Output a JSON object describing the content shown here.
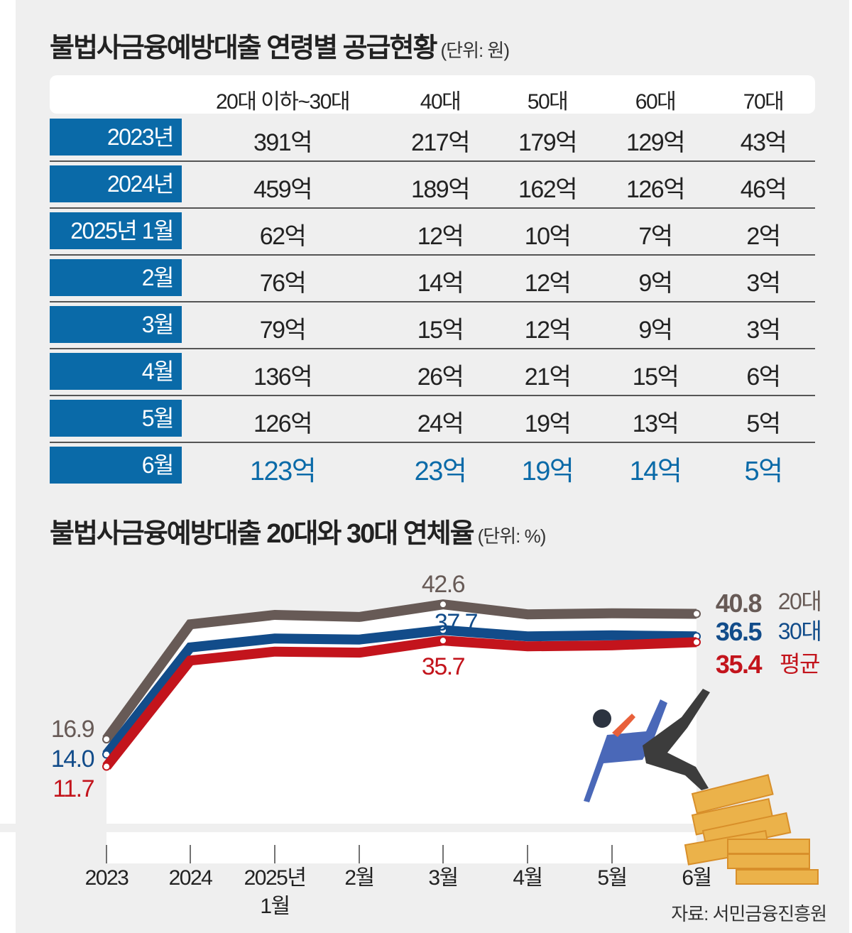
{
  "table": {
    "title": "불법사금융예방대출 연령별 공급현황",
    "unit": "(단위: 원)",
    "columns": [
      "20대 이하~30대",
      "40대",
      "50대",
      "60대",
      "70대"
    ],
    "rows": [
      {
        "label": "2023년",
        "values": [
          "391억",
          "217억",
          "179억",
          "129억",
          "43억"
        ]
      },
      {
        "label": "2024년",
        "values": [
          "459억",
          "189억",
          "162억",
          "126억",
          "46억"
        ]
      },
      {
        "label": "2025년 1월",
        "values": [
          "62억",
          "12억",
          "10억",
          "7억",
          "2억"
        ]
      },
      {
        "label": "2월",
        "values": [
          "76억",
          "14억",
          "12억",
          "9억",
          "3억"
        ]
      },
      {
        "label": "3월",
        "values": [
          "79억",
          "15억",
          "12억",
          "9억",
          "3억"
        ]
      },
      {
        "label": "4월",
        "values": [
          "136억",
          "26억",
          "21억",
          "15억",
          "6억"
        ]
      },
      {
        "label": "5월",
        "values": [
          "126억",
          "24억",
          "19억",
          "13억",
          "5억"
        ]
      },
      {
        "label": "6월",
        "values": [
          "123억",
          "23억",
          "19억",
          "14억",
          "5억"
        ]
      }
    ]
  },
  "chart_data": {
    "type": "line",
    "title": "불법사금융예방대출 20대와 30대 연체율",
    "unit": "(단위: %)",
    "categories": [
      "2023",
      "2024",
      "2025년\n1월",
      "2월",
      "3월",
      "4월",
      "5월",
      "6월"
    ],
    "series": [
      {
        "name": "20대",
        "color": "#675a56",
        "values": [
          16.9,
          38.8,
          40.6,
          40.2,
          42.6,
          40.7,
          40.9,
          40.8
        ],
        "labels": {
          "0": "16.9",
          "4": "42.6",
          "7": "40.8"
        }
      },
      {
        "name": "30대",
        "color": "#124c8a",
        "values": [
          14.0,
          34.4,
          36.1,
          35.9,
          37.7,
          36.5,
          36.7,
          36.5
        ],
        "labels": {
          "0": "14.0",
          "4": "37.7",
          "7": "36.5"
        }
      },
      {
        "name": "평균",
        "color": "#c3141c",
        "values": [
          11.7,
          31.9,
          33.6,
          33.4,
          35.7,
          34.6,
          34.8,
          35.4
        ],
        "labels": {
          "0": "11.7",
          "4": "35.7",
          "7": "35.4"
        }
      }
    ],
    "ylim": [
      0,
      45
    ],
    "grid": false
  },
  "source": "자료: 서민금융진흥원"
}
